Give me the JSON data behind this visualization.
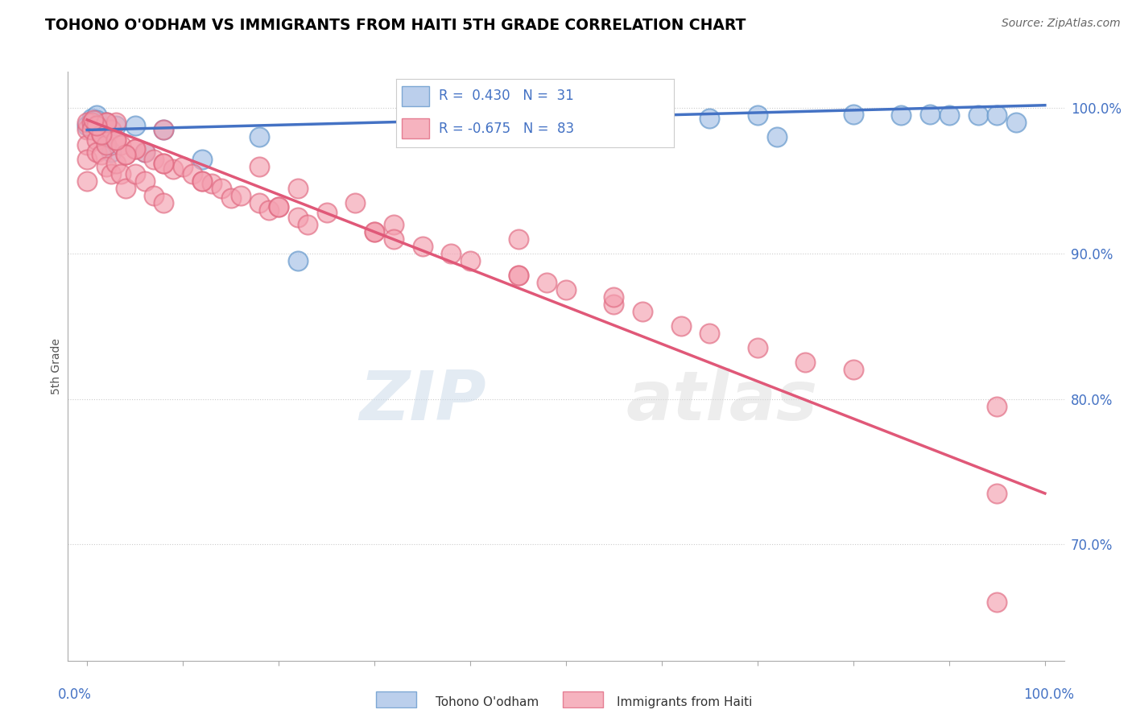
{
  "title": "TOHONO O'ODHAM VS IMMIGRANTS FROM HAITI 5TH GRADE CORRELATION CHART",
  "source": "Source: ZipAtlas.com",
  "ylabel": "5th Grade",
  "watermark_zip": "ZIP",
  "watermark_atlas": "atlas",
  "legend1_label": "Tohono O'odham",
  "legend2_label": "Immigrants from Haiti",
  "r_blue": 0.43,
  "n_blue": 31,
  "r_pink": -0.675,
  "n_pink": 83,
  "blue_fill_color": "#aac4e8",
  "pink_fill_color": "#f4a0b0",
  "blue_edge_color": "#6699cc",
  "pink_edge_color": "#e06880",
  "blue_line_color": "#4472c4",
  "pink_line_color": "#e05878",
  "ytick_color": "#4472c4",
  "xtick_color": "#4472c4",
  "ylim": [
    62.0,
    102.5
  ],
  "xlim": [
    -0.02,
    1.02
  ],
  "blue_line_x": [
    0.0,
    1.0
  ],
  "blue_line_y": [
    98.5,
    100.2
  ],
  "pink_line_x": [
    0.0,
    1.0
  ],
  "pink_line_y": [
    99.2,
    73.5
  ],
  "blue_points_x": [
    0.0,
    0.005,
    0.008,
    0.01,
    0.01,
    0.015,
    0.02,
    0.02,
    0.025,
    0.03,
    0.05,
    0.06,
    0.08,
    0.12,
    0.18,
    0.22,
    0.35,
    0.38,
    0.5,
    0.55,
    0.6,
    0.65,
    0.7,
    0.72,
    0.8,
    0.85,
    0.88,
    0.9,
    0.93,
    0.95,
    0.97
  ],
  "blue_points_y": [
    98.8,
    99.3,
    99.0,
    99.5,
    99.2,
    98.7,
    97.5,
    99.0,
    97.0,
    98.8,
    98.8,
    97.0,
    98.5,
    96.5,
    98.0,
    89.5,
    99.3,
    99.4,
    99.2,
    99.0,
    99.5,
    99.3,
    99.5,
    98.0,
    99.6,
    99.5,
    99.6,
    99.5,
    99.5,
    99.5,
    99.0
  ],
  "pink_points_x": [
    0.0,
    0.0,
    0.0,
    0.0,
    0.0,
    0.005,
    0.005,
    0.01,
    0.01,
    0.01,
    0.015,
    0.015,
    0.02,
    0.02,
    0.02,
    0.025,
    0.025,
    0.03,
    0.03,
    0.035,
    0.035,
    0.04,
    0.04,
    0.05,
    0.05,
    0.06,
    0.06,
    0.07,
    0.07,
    0.08,
    0.08,
    0.09,
    0.1,
    0.11,
    0.12,
    0.13,
    0.14,
    0.15,
    0.16,
    0.18,
    0.19,
    0.2,
    0.22,
    0.23,
    0.25,
    0.3,
    0.35,
    0.4,
    0.45,
    0.5,
    0.45,
    0.28,
    0.32,
    0.22,
    0.18,
    0.08,
    0.03,
    0.55,
    0.32,
    0.38,
    0.48,
    0.55,
    0.58,
    0.62,
    0.65,
    0.7,
    0.75,
    0.8,
    0.95,
    0.95,
    0.95,
    0.45,
    0.3,
    0.2,
    0.12,
    0.08,
    0.05,
    0.04,
    0.03,
    0.02,
    0.015,
    0.01,
    0.007
  ],
  "pink_points_y": [
    98.5,
    99.0,
    97.5,
    96.5,
    95.0,
    99.0,
    98.5,
    98.8,
    97.8,
    97.0,
    98.2,
    96.8,
    99.0,
    97.5,
    96.0,
    98.5,
    95.5,
    97.8,
    96.2,
    97.5,
    95.5,
    96.8,
    94.5,
    97.2,
    95.5,
    97.0,
    95.0,
    96.5,
    94.0,
    96.2,
    93.5,
    95.8,
    96.0,
    95.5,
    95.0,
    94.8,
    94.5,
    93.8,
    94.0,
    93.5,
    93.0,
    93.2,
    92.5,
    92.0,
    92.8,
    91.5,
    90.5,
    89.5,
    88.5,
    87.5,
    91.0,
    93.5,
    92.0,
    94.5,
    96.0,
    98.5,
    99.0,
    86.5,
    91.0,
    90.0,
    88.0,
    87.0,
    86.0,
    85.0,
    84.5,
    83.5,
    82.5,
    82.0,
    79.5,
    73.5,
    66.0,
    88.5,
    91.5,
    93.2,
    95.0,
    96.2,
    97.2,
    96.8,
    97.8,
    99.0,
    98.2,
    98.8,
    99.2
  ]
}
